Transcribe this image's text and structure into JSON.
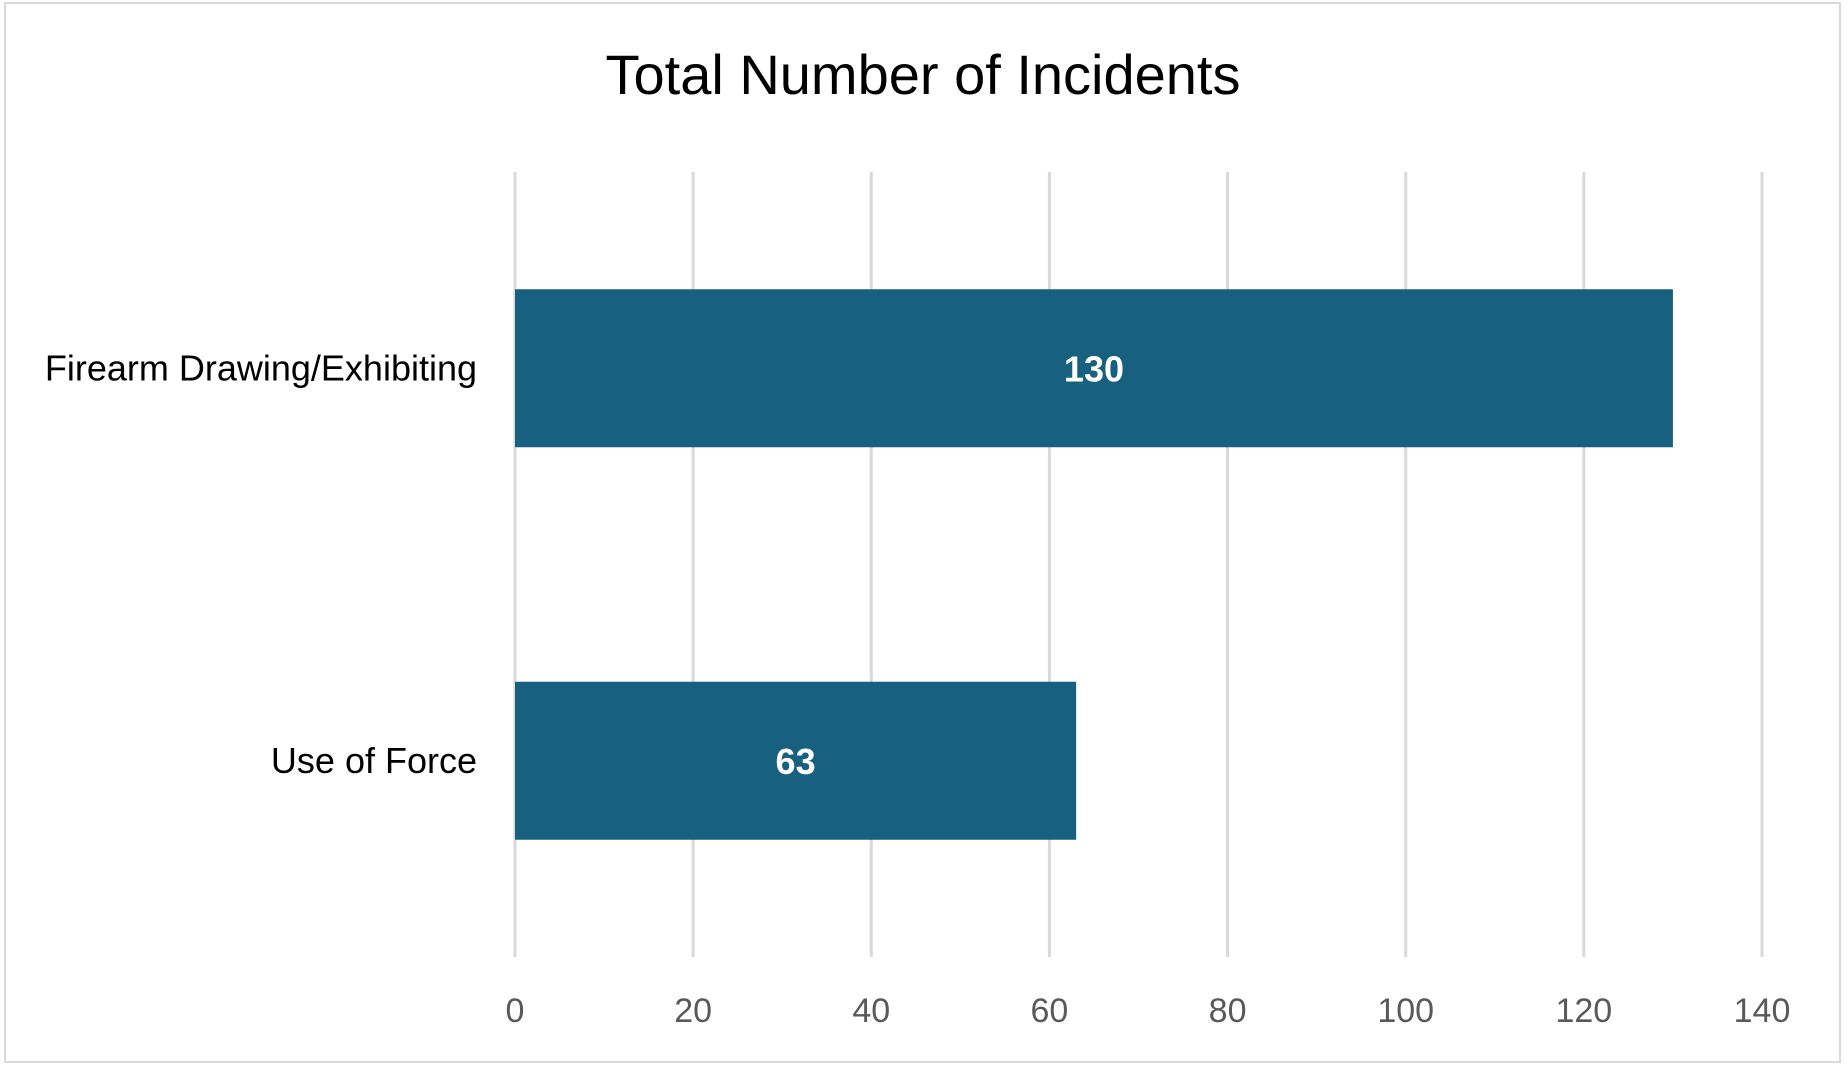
{
  "chart_data": {
    "type": "bar",
    "orientation": "horizontal",
    "title": "Total Number of Incidents",
    "categories": [
      "Firearm Drawing/Exhibiting",
      "Use of Force"
    ],
    "values": [
      130,
      63
    ],
    "data_labels": [
      "130",
      "63"
    ],
    "xlim": [
      0,
      140
    ],
    "x_ticks": [
      "0",
      "20",
      "40",
      "60",
      "80",
      "100",
      "120",
      "140"
    ],
    "xlabel": "",
    "ylabel": "",
    "grid": "vertical",
    "legend": "none",
    "bar_color": "#17607f"
  }
}
